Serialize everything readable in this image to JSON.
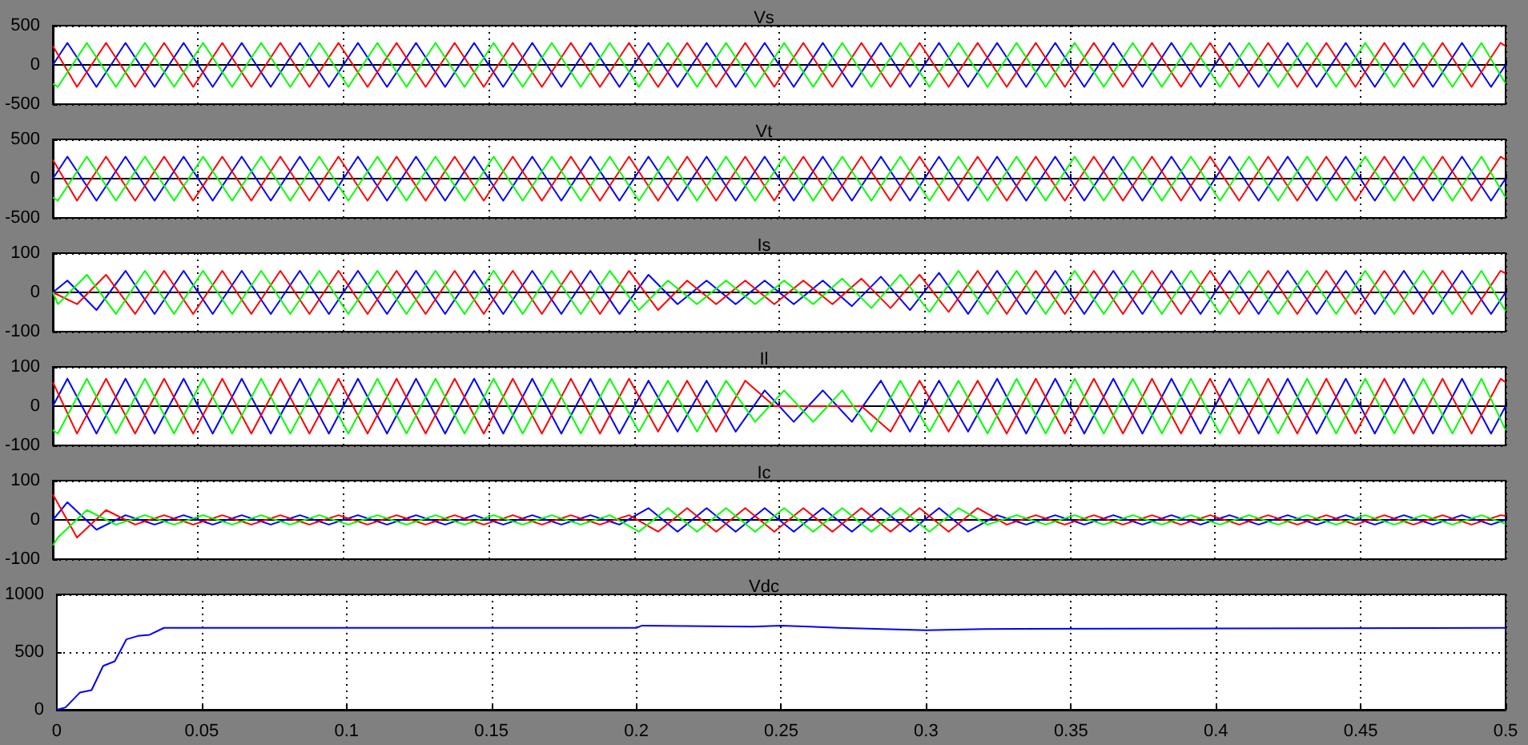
{
  "chart_data": [
    {
      "type": "line",
      "title": "Vs",
      "xlim": [
        0,
        0.5
      ],
      "xticks": [
        0,
        0.05,
        0.1,
        0.15,
        0.2,
        0.25,
        0.3,
        0.35,
        0.4,
        0.45,
        0.5
      ],
      "ylim": [
        -500,
        500
      ],
      "yticks": [
        -500,
        0,
        500
      ],
      "grid": true,
      "tick_labels": "y",
      "series": [
        {
          "color": "#0000ff",
          "x": [
            0,
            0.005,
            0.015,
            0.025,
            0.035,
            0.045,
            0.055,
            0.065,
            0.075,
            0.085,
            0.095,
            0.105,
            0.115,
            0.125,
            0.135,
            0.145,
            0.155,
            0.165,
            0.175,
            0.185,
            0.195,
            0.205,
            0.215,
            0.225,
            0.235,
            0.245,
            0.255,
            0.265,
            0.275,
            0.285,
            0.295,
            0.305,
            0.315,
            0.325,
            0.335,
            0.345,
            0.355,
            0.365,
            0.375,
            0.385,
            0.395,
            0.405,
            0.415,
            0.425,
            0.435,
            0.445,
            0.455,
            0.465,
            0.475,
            0.485,
            0.495,
            0.5
          ],
          "values": [
            0,
            280,
            -280,
            280,
            -280,
            280,
            -280,
            280,
            -280,
            280,
            -280,
            280,
            -280,
            280,
            -280,
            280,
            -280,
            280,
            -280,
            280,
            -280,
            280,
            -280,
            280,
            -280,
            280,
            -280,
            280,
            -280,
            280,
            -280,
            280,
            -280,
            280,
            -280,
            280,
            -280,
            280,
            -280,
            280,
            -280,
            280,
            -280,
            280,
            -280,
            280,
            -280,
            280,
            -280,
            280,
            -280,
            0
          ]
        },
        {
          "color": "#ff0000",
          "x": [
            0,
            0.0083,
            0.0183,
            0.0283,
            0.0383,
            0.0483,
            0.0583,
            0.0683,
            0.0783,
            0.0883,
            0.0983,
            0.1083,
            0.1183,
            0.1283,
            0.1383,
            0.1483,
            0.1583,
            0.1683,
            0.1783,
            0.1883,
            0.1983,
            0.2083,
            0.2183,
            0.2283,
            0.2383,
            0.2483,
            0.2583,
            0.2683,
            0.2783,
            0.2883,
            0.2983,
            0.3083,
            0.3183,
            0.3283,
            0.3383,
            0.3483,
            0.3583,
            0.3683,
            0.3783,
            0.3883,
            0.3983,
            0.4083,
            0.4183,
            0.4283,
            0.4383,
            0.4483,
            0.4583,
            0.4683,
            0.4783,
            0.4883,
            0.4983,
            0.5
          ],
          "values": [
            240,
            -280,
            280,
            -280,
            280,
            -280,
            280,
            -280,
            280,
            -280,
            280,
            -280,
            280,
            -280,
            280,
            -280,
            280,
            -280,
            280,
            -280,
            280,
            -280,
            280,
            -280,
            280,
            -280,
            280,
            -280,
            280,
            -280,
            280,
            -280,
            280,
            -280,
            280,
            -280,
            280,
            -280,
            280,
            -280,
            280,
            -280,
            280,
            -280,
            280,
            -280,
            280,
            -280,
            280,
            -280,
            280,
            240
          ]
        },
        {
          "color": "#00ff00",
          "x": [
            0,
            0.0017,
            0.0117,
            0.0217,
            0.0317,
            0.0417,
            0.0517,
            0.0617,
            0.0717,
            0.0817,
            0.0917,
            0.1017,
            0.1117,
            0.1217,
            0.1317,
            0.1417,
            0.1517,
            0.1617,
            0.1717,
            0.1817,
            0.1917,
            0.2017,
            0.2117,
            0.2217,
            0.2317,
            0.2417,
            0.2517,
            0.2617,
            0.2717,
            0.2817,
            0.2917,
            0.3017,
            0.3117,
            0.3217,
            0.3317,
            0.3417,
            0.3517,
            0.3617,
            0.3717,
            0.3817,
            0.3917,
            0.4017,
            0.4117,
            0.4217,
            0.4317,
            0.4417,
            0.4517,
            0.4617,
            0.4717,
            0.4817,
            0.4917,
            0.5
          ],
          "values": [
            -240,
            -280,
            280,
            -280,
            280,
            -280,
            280,
            -280,
            280,
            -280,
            280,
            -280,
            280,
            -280,
            280,
            -280,
            280,
            -280,
            280,
            -280,
            280,
            -280,
            280,
            -280,
            280,
            -280,
            280,
            -280,
            280,
            -280,
            280,
            -280,
            280,
            -280,
            280,
            -280,
            280,
            -280,
            280,
            -280,
            280,
            -280,
            280,
            -280,
            280,
            -280,
            280,
            -280,
            280,
            -280,
            280,
            -240
          ]
        }
      ]
    },
    {
      "type": "line",
      "title": "Vt",
      "xlim": [
        0,
        0.5
      ],
      "xticks": [
        0,
        0.05,
        0.1,
        0.15,
        0.2,
        0.25,
        0.3,
        0.35,
        0.4,
        0.45,
        0.5
      ],
      "ylim": [
        -500,
        500
      ],
      "yticks": [
        -500,
        0,
        500
      ],
      "grid": true,
      "tick_labels": "y",
      "series": [
        {
          "color": "#0000ff",
          "x": [
            0,
            0.005,
            0.015,
            0.025,
            0.035,
            0.045,
            0.055,
            0.065,
            0.075,
            0.085,
            0.095,
            0.105,
            0.115,
            0.125,
            0.135,
            0.145,
            0.155,
            0.165,
            0.175,
            0.185,
            0.195,
            0.205,
            0.215,
            0.225,
            0.235,
            0.245,
            0.255,
            0.265,
            0.275,
            0.285,
            0.295,
            0.305,
            0.315,
            0.325,
            0.335,
            0.345,
            0.355,
            0.365,
            0.375,
            0.385,
            0.395,
            0.405,
            0.415,
            0.425,
            0.435,
            0.445,
            0.455,
            0.465,
            0.475,
            0.485,
            0.495,
            0.5
          ],
          "values": [
            0,
            280,
            -280,
            280,
            -280,
            280,
            -280,
            280,
            -280,
            280,
            -280,
            280,
            -280,
            280,
            -280,
            280,
            -280,
            280,
            -280,
            280,
            -280,
            280,
            -280,
            280,
            -280,
            280,
            -280,
            280,
            -280,
            280,
            -280,
            280,
            -280,
            280,
            -280,
            280,
            -280,
            280,
            -280,
            280,
            -280,
            280,
            -280,
            280,
            -280,
            280,
            -280,
            280,
            -280,
            280,
            -280,
            0
          ]
        },
        {
          "color": "#ff0000",
          "x": [
            0,
            0.0083,
            0.0183,
            0.0283,
            0.0383,
            0.0483,
            0.0583,
            0.0683,
            0.0783,
            0.0883,
            0.0983,
            0.1083,
            0.1183,
            0.1283,
            0.1383,
            0.1483,
            0.1583,
            0.1683,
            0.1783,
            0.1883,
            0.1983,
            0.2083,
            0.2183,
            0.2283,
            0.2383,
            0.2483,
            0.2583,
            0.2683,
            0.2783,
            0.2883,
            0.2983,
            0.3083,
            0.3183,
            0.3283,
            0.3383,
            0.3483,
            0.3583,
            0.3683,
            0.3783,
            0.3883,
            0.3983,
            0.4083,
            0.4183,
            0.4283,
            0.4383,
            0.4483,
            0.4583,
            0.4683,
            0.4783,
            0.4883,
            0.4983,
            0.5
          ],
          "values": [
            240,
            -280,
            280,
            -280,
            280,
            -280,
            280,
            -280,
            280,
            -280,
            280,
            -280,
            280,
            -280,
            280,
            -280,
            280,
            -280,
            280,
            -280,
            280,
            -280,
            280,
            -280,
            280,
            -280,
            280,
            -280,
            280,
            -280,
            280,
            -280,
            280,
            -280,
            280,
            -280,
            280,
            -280,
            280,
            -280,
            280,
            -280,
            280,
            -280,
            280,
            -280,
            280,
            -280,
            280,
            -280,
            280,
            240
          ]
        },
        {
          "color": "#00ff00",
          "x": [
            0,
            0.0017,
            0.0117,
            0.0217,
            0.0317,
            0.0417,
            0.0517,
            0.0617,
            0.0717,
            0.0817,
            0.0917,
            0.1017,
            0.1117,
            0.1217,
            0.1317,
            0.1417,
            0.1517,
            0.1617,
            0.1717,
            0.1817,
            0.1917,
            0.2017,
            0.2117,
            0.2217,
            0.2317,
            0.2417,
            0.2517,
            0.2617,
            0.2717,
            0.2817,
            0.2917,
            0.3017,
            0.3117,
            0.3217,
            0.3317,
            0.3417,
            0.3517,
            0.3617,
            0.3717,
            0.3817,
            0.3917,
            0.4017,
            0.4117,
            0.4217,
            0.4317,
            0.4417,
            0.4517,
            0.4617,
            0.4717,
            0.4817,
            0.4917,
            0.5
          ],
          "values": [
            -240,
            -280,
            280,
            -280,
            280,
            -280,
            280,
            -280,
            280,
            -280,
            280,
            -280,
            280,
            -280,
            280,
            -280,
            280,
            -280,
            280,
            -280,
            280,
            -280,
            280,
            -280,
            280,
            -280,
            280,
            -280,
            280,
            -280,
            280,
            -280,
            280,
            -280,
            280,
            -280,
            280,
            -280,
            280,
            -280,
            280,
            -280,
            280,
            -280,
            280,
            -280,
            280,
            -280,
            280,
            -280,
            280,
            -240
          ]
        }
      ]
    },
    {
      "type": "line",
      "title": "Is",
      "xlim": [
        0,
        0.5
      ],
      "xticks": [
        0,
        0.05,
        0.1,
        0.15,
        0.2,
        0.25,
        0.3,
        0.35,
        0.4,
        0.45,
        0.5
      ],
      "ylim": [
        -100,
        100
      ],
      "yticks": [
        -100,
        0,
        100
      ],
      "grid": true,
      "tick_labels": "y",
      "series": [
        {
          "color": "#0000ff",
          "x": [
            0,
            0.005,
            0.015,
            0.025,
            0.035,
            0.045,
            0.055,
            0.065,
            0.075,
            0.085,
            0.095,
            0.105,
            0.115,
            0.125,
            0.135,
            0.145,
            0.155,
            0.165,
            0.175,
            0.185,
            0.195,
            0.205,
            0.215,
            0.225,
            0.235,
            0.245,
            0.255,
            0.265,
            0.275,
            0.285,
            0.295,
            0.305,
            0.315,
            0.325,
            0.335,
            0.345,
            0.355,
            0.365,
            0.375,
            0.385,
            0.395,
            0.405,
            0.415,
            0.425,
            0.435,
            0.445,
            0.455,
            0.465,
            0.475,
            0.485,
            0.495,
            0.5
          ],
          "values": [
            0,
            30,
            -45,
            55,
            -55,
            55,
            -55,
            55,
            -55,
            55,
            -55,
            55,
            -55,
            55,
            -55,
            55,
            -55,
            55,
            -55,
            55,
            -55,
            45,
            -30,
            30,
            -30,
            30,
            -30,
            30,
            -35,
            40,
            -45,
            50,
            -55,
            55,
            -55,
            55,
            -55,
            55,
            -55,
            55,
            -55,
            55,
            -55,
            55,
            -55,
            55,
            -55,
            55,
            -55,
            55,
            -55,
            0
          ]
        },
        {
          "color": "#ff0000",
          "x": [
            0,
            0.0083,
            0.0183,
            0.0283,
            0.0383,
            0.0483,
            0.0583,
            0.0683,
            0.0783,
            0.0883,
            0.0983,
            0.1083,
            0.1183,
            0.1283,
            0.1383,
            0.1483,
            0.1583,
            0.1683,
            0.1783,
            0.1883,
            0.1983,
            0.2083,
            0.2183,
            0.2283,
            0.2383,
            0.2483,
            0.2583,
            0.2683,
            0.2783,
            0.2883,
            0.2983,
            0.3083,
            0.3183,
            0.3283,
            0.3383,
            0.3483,
            0.3583,
            0.3683,
            0.3783,
            0.3883,
            0.3983,
            0.4083,
            0.4183,
            0.4283,
            0.4383,
            0.4483,
            0.4583,
            0.4683,
            0.4783,
            0.4883,
            0.4983,
            0.5
          ],
          "values": [
            0,
            -30,
            45,
            -55,
            55,
            -55,
            55,
            -55,
            55,
            -55,
            55,
            -55,
            55,
            -55,
            55,
            -55,
            55,
            -55,
            55,
            -55,
            55,
            -45,
            30,
            -30,
            30,
            -30,
            30,
            -30,
            35,
            -40,
            45,
            -50,
            55,
            -55,
            55,
            -55,
            55,
            -55,
            55,
            -55,
            55,
            -55,
            55,
            -55,
            55,
            -55,
            55,
            -55,
            55,
            -55,
            55,
            48
          ]
        },
        {
          "color": "#00ff00",
          "x": [
            0,
            0.0017,
            0.0117,
            0.0217,
            0.0317,
            0.0417,
            0.0517,
            0.0617,
            0.0717,
            0.0817,
            0.0917,
            0.1017,
            0.1117,
            0.1217,
            0.1317,
            0.1417,
            0.1517,
            0.1617,
            0.1717,
            0.1817,
            0.1917,
            0.2017,
            0.2117,
            0.2217,
            0.2317,
            0.2417,
            0.2517,
            0.2617,
            0.2717,
            0.2817,
            0.2917,
            0.3017,
            0.3117,
            0.3217,
            0.3317,
            0.3417,
            0.3517,
            0.3617,
            0.3717,
            0.3817,
            0.3917,
            0.4017,
            0.4117,
            0.4217,
            0.4317,
            0.4417,
            0.4517,
            0.4617,
            0.4717,
            0.4817,
            0.4917,
            0.5
          ],
          "values": [
            0,
            -30,
            45,
            -55,
            55,
            -55,
            55,
            -55,
            55,
            -55,
            55,
            -55,
            55,
            -55,
            55,
            -55,
            55,
            -55,
            55,
            -55,
            55,
            -45,
            30,
            -30,
            30,
            -30,
            30,
            -30,
            35,
            -40,
            45,
            -50,
            55,
            -55,
            55,
            -55,
            55,
            -55,
            55,
            -55,
            55,
            -55,
            55,
            -55,
            55,
            -55,
            55,
            -55,
            55,
            -55,
            55,
            -48
          ]
        }
      ]
    },
    {
      "type": "line",
      "title": "Il",
      "xlim": [
        0,
        0.5
      ],
      "xticks": [
        0,
        0.05,
        0.1,
        0.15,
        0.2,
        0.25,
        0.3,
        0.35,
        0.4,
        0.45,
        0.5
      ],
      "ylim": [
        -100,
        100
      ],
      "yticks": [
        -100,
        0,
        100
      ],
      "grid": true,
      "tick_labels": "y",
      "series": [
        {
          "color": "#0000ff",
          "x": [
            0,
            0.005,
            0.015,
            0.025,
            0.035,
            0.045,
            0.055,
            0.065,
            0.075,
            0.085,
            0.095,
            0.105,
            0.115,
            0.125,
            0.135,
            0.145,
            0.155,
            0.165,
            0.175,
            0.185,
            0.195,
            0.205,
            0.215,
            0.225,
            0.235,
            0.245,
            0.255,
            0.265,
            0.275,
            0.285,
            0.295,
            0.305,
            0.315,
            0.325,
            0.335,
            0.345,
            0.355,
            0.365,
            0.375,
            0.385,
            0.395,
            0.405,
            0.415,
            0.425,
            0.435,
            0.445,
            0.455,
            0.465,
            0.475,
            0.485,
            0.495,
            0.5
          ],
          "values": [
            0,
            70,
            -70,
            70,
            -70,
            70,
            -70,
            70,
            -70,
            70,
            -70,
            70,
            -70,
            70,
            -70,
            70,
            -70,
            70,
            -70,
            70,
            -70,
            65,
            -65,
            65,
            -65,
            40,
            -40,
            40,
            -40,
            65,
            -65,
            65,
            -65,
            70,
            -70,
            70,
            -70,
            70,
            -70,
            70,
            -70,
            70,
            -70,
            70,
            -70,
            70,
            -70,
            70,
            -70,
            70,
            -70,
            0
          ]
        },
        {
          "color": "#ff0000",
          "x": [
            0,
            0.0083,
            0.0183,
            0.0283,
            0.0383,
            0.0483,
            0.0583,
            0.0683,
            0.0783,
            0.0883,
            0.0983,
            0.1083,
            0.1183,
            0.1283,
            0.1383,
            0.1483,
            0.1583,
            0.1683,
            0.1783,
            0.1883,
            0.1983,
            0.2083,
            0.2183,
            0.2283,
            0.2383,
            0.2483,
            0.2583,
            0.2683,
            0.2783,
            0.2883,
            0.2983,
            0.3083,
            0.3183,
            0.3283,
            0.3383,
            0.3483,
            0.3583,
            0.3683,
            0.3783,
            0.3883,
            0.3983,
            0.4083,
            0.4183,
            0.4283,
            0.4383,
            0.4483,
            0.4583,
            0.4683,
            0.4783,
            0.4883,
            0.4983,
            0.5
          ],
          "values": [
            61,
            -70,
            70,
            -70,
            70,
            -70,
            70,
            -70,
            70,
            -70,
            70,
            -70,
            70,
            -70,
            70,
            -70,
            70,
            -70,
            70,
            -70,
            70,
            -65,
            65,
            -65,
            65,
            0,
            0,
            0,
            0,
            -65,
            65,
            -65,
            65,
            -70,
            70,
            -70,
            70,
            -70,
            70,
            -70,
            70,
            -70,
            70,
            -70,
            70,
            -70,
            70,
            -70,
            70,
            -70,
            70,
            61
          ]
        },
        {
          "color": "#00ff00",
          "x": [
            0,
            0.0017,
            0.0117,
            0.0217,
            0.0317,
            0.0417,
            0.0517,
            0.0617,
            0.0717,
            0.0817,
            0.0917,
            0.1017,
            0.1117,
            0.1217,
            0.1317,
            0.1417,
            0.1517,
            0.1617,
            0.1717,
            0.1817,
            0.1917,
            0.2017,
            0.2117,
            0.2217,
            0.2317,
            0.2417,
            0.2517,
            0.2617,
            0.2717,
            0.2817,
            0.2917,
            0.3017,
            0.3117,
            0.3217,
            0.3317,
            0.3417,
            0.3517,
            0.3617,
            0.3717,
            0.3817,
            0.3917,
            0.4017,
            0.4117,
            0.4217,
            0.4317,
            0.4417,
            0.4517,
            0.4617,
            0.4717,
            0.4817,
            0.4917,
            0.5
          ],
          "values": [
            -61,
            -70,
            70,
            -70,
            70,
            -70,
            70,
            -70,
            70,
            -70,
            70,
            -70,
            70,
            -70,
            70,
            -70,
            70,
            -70,
            70,
            -70,
            70,
            -65,
            65,
            -65,
            65,
            -40,
            40,
            -40,
            40,
            -65,
            65,
            -65,
            65,
            -70,
            70,
            -70,
            70,
            -70,
            70,
            -70,
            70,
            -70,
            70,
            -70,
            70,
            -70,
            70,
            -70,
            70,
            -70,
            70,
            -61
          ]
        }
      ]
    },
    {
      "type": "line",
      "title": "Ic",
      "xlim": [
        0,
        0.5
      ],
      "xticks": [
        0,
        0.05,
        0.1,
        0.15,
        0.2,
        0.25,
        0.3,
        0.35,
        0.4,
        0.45,
        0.5
      ],
      "ylim": [
        -100,
        100
      ],
      "yticks": [
        -100,
        0,
        100
      ],
      "grid": true,
      "tick_labels": "y",
      "series": [
        {
          "color": "#0000ff",
          "x": [
            0,
            0.005,
            0.015,
            0.025,
            0.035,
            0.045,
            0.055,
            0.065,
            0.075,
            0.085,
            0.095,
            0.105,
            0.115,
            0.125,
            0.135,
            0.145,
            0.155,
            0.165,
            0.175,
            0.185,
            0.195,
            0.205,
            0.215,
            0.225,
            0.235,
            0.245,
            0.255,
            0.265,
            0.275,
            0.285,
            0.295,
            0.305,
            0.315,
            0.325,
            0.335,
            0.345,
            0.355,
            0.365,
            0.375,
            0.385,
            0.395,
            0.405,
            0.415,
            0.425,
            0.435,
            0.445,
            0.455,
            0.465,
            0.475,
            0.485,
            0.495,
            0.5
          ],
          "values": [
            0,
            45,
            -25,
            12,
            -12,
            12,
            -12,
            12,
            -12,
            12,
            -12,
            12,
            -12,
            12,
            -12,
            12,
            -12,
            12,
            -12,
            12,
            -12,
            30,
            -30,
            30,
            -30,
            30,
            -30,
            30,
            -30,
            30,
            -30,
            30,
            -30,
            12,
            -12,
            12,
            -12,
            12,
            -12,
            12,
            -12,
            12,
            -12,
            12,
            -12,
            12,
            -12,
            12,
            -12,
            12,
            -12,
            0
          ]
        },
        {
          "color": "#ff0000",
          "x": [
            0,
            0.0083,
            0.0183,
            0.0283,
            0.0383,
            0.0483,
            0.0583,
            0.0683,
            0.0783,
            0.0883,
            0.0983,
            0.1083,
            0.1183,
            0.1283,
            0.1383,
            0.1483,
            0.1583,
            0.1683,
            0.1783,
            0.1883,
            0.1983,
            0.2083,
            0.2183,
            0.2283,
            0.2383,
            0.2483,
            0.2583,
            0.2683,
            0.2783,
            0.2883,
            0.2983,
            0.3083,
            0.3183,
            0.3283,
            0.3383,
            0.3483,
            0.3583,
            0.3683,
            0.3783,
            0.3883,
            0.3983,
            0.4083,
            0.4183,
            0.4283,
            0.4383,
            0.4483,
            0.4583,
            0.4683,
            0.4783,
            0.4883,
            0.4983,
            0.5
          ],
          "values": [
            65,
            -45,
            25,
            -12,
            12,
            -12,
            12,
            -12,
            12,
            -12,
            12,
            -12,
            12,
            -12,
            12,
            -12,
            12,
            -12,
            12,
            -12,
            12,
            -30,
            30,
            -30,
            30,
            -30,
            30,
            -30,
            30,
            -30,
            30,
            -30,
            30,
            -12,
            12,
            -12,
            12,
            -12,
            12,
            -12,
            12,
            -12,
            12,
            -12,
            12,
            -12,
            12,
            -12,
            12,
            -12,
            12,
            10
          ]
        },
        {
          "color": "#00ff00",
          "x": [
            0,
            0.0017,
            0.0117,
            0.0217,
            0.0317,
            0.0417,
            0.0517,
            0.0617,
            0.0717,
            0.0817,
            0.0917,
            0.1017,
            0.1117,
            0.1217,
            0.1317,
            0.1417,
            0.1517,
            0.1617,
            0.1717,
            0.1817,
            0.1917,
            0.2017,
            0.2117,
            0.2217,
            0.2317,
            0.2417,
            0.2517,
            0.2617,
            0.2717,
            0.2817,
            0.2917,
            0.3017,
            0.3117,
            0.3217,
            0.3317,
            0.3417,
            0.3517,
            0.3617,
            0.3717,
            0.3817,
            0.3917,
            0.4017,
            0.4117,
            0.4217,
            0.4317,
            0.4417,
            0.4517,
            0.4617,
            0.4717,
            0.4817,
            0.4917,
            0.5
          ],
          "values": [
            -65,
            -45,
            25,
            -12,
            12,
            -12,
            12,
            -12,
            12,
            -12,
            12,
            -12,
            12,
            -12,
            12,
            -12,
            12,
            -12,
            12,
            -12,
            12,
            -30,
            30,
            -30,
            30,
            -30,
            30,
            -30,
            30,
            -30,
            30,
            -30,
            30,
            -12,
            12,
            -12,
            12,
            -12,
            12,
            -12,
            12,
            -12,
            12,
            -12,
            12,
            -12,
            12,
            -12,
            12,
            -12,
            12,
            -10
          ]
        }
      ]
    },
    {
      "type": "line",
      "title": "Vdc",
      "xlim": [
        0,
        0.5
      ],
      "xticks": [
        0,
        0.05,
        0.1,
        0.15,
        0.2,
        0.25,
        0.3,
        0.35,
        0.4,
        0.45,
        0.5
      ],
      "ylim": [
        0,
        1000
      ],
      "yticks": [
        0,
        500,
        1000
      ],
      "grid": true,
      "series": [
        {
          "color": "#0000ff",
          "x": [
            0,
            0.003,
            0.008,
            0.012,
            0.016,
            0.02,
            0.024,
            0.028,
            0.032,
            0.037,
            0.2,
            0.202,
            0.24,
            0.25,
            0.27,
            0.3,
            0.32,
            0.5
          ],
          "values": [
            0,
            20,
            150,
            170,
            380,
            420,
            610,
            640,
            650,
            710,
            710,
            730,
            720,
            730,
            710,
            690,
            700,
            710
          ]
        }
      ]
    }
  ]
}
